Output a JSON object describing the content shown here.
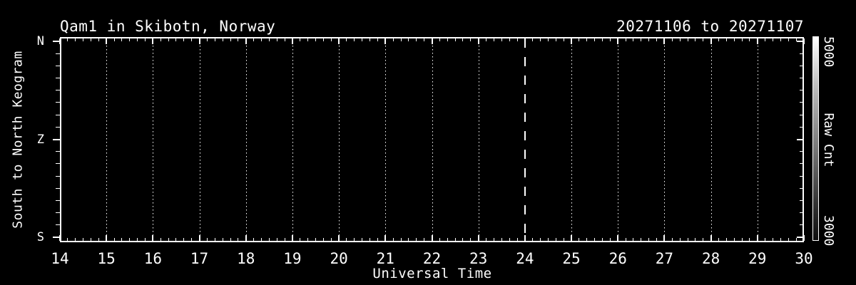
{
  "header": {
    "title": "Qam1 in Skibotn, Norway",
    "date_range": "20271106 to 20271107"
  },
  "axes": {
    "x": {
      "label": "Universal Time"
    },
    "y": {
      "label": "South to North Keogram"
    }
  },
  "colorbar": {
    "label": "Raw Cnt",
    "max_label": "5000",
    "min_label": "3000"
  },
  "chart_data": {
    "type": "heatmap",
    "title": "Qam1 in Skibotn, Norway",
    "subtitle": "20271106 to 20271107",
    "xlabel": "Universal Time",
    "ylabel": "South to North Keogram",
    "xlim": [
      14,
      30
    ],
    "x_ticks": [
      14,
      15,
      16,
      17,
      18,
      19,
      20,
      21,
      22,
      23,
      24,
      25,
      26,
      27,
      28,
      29,
      30
    ],
    "x_minor_ticks_per_interval": 5,
    "y_ticks": [
      "N",
      "Z",
      "S"
    ],
    "y_minor_ticks_per_interval": 7,
    "grid": "dotted vertical line at each hour",
    "dashed_vline_x": 24,
    "values": [],
    "panel_content": "empty (all black, no counts rendered)",
    "colorbar": {
      "label": "Raw Cnt",
      "min": 3000,
      "max": 5000,
      "min_color": "#0d0d0d",
      "max_color": "#ffffff"
    },
    "colors": {
      "background": "#000000",
      "foreground": "#ffffff"
    },
    "legend_position": "none"
  }
}
